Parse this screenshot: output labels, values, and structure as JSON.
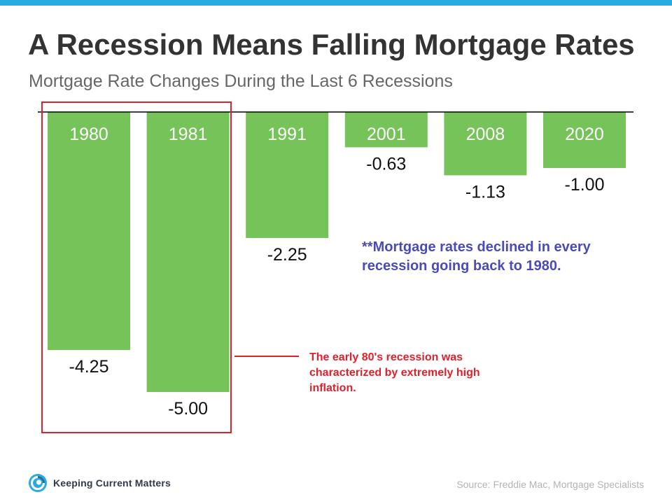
{
  "header": {
    "title": "A Recession Means Falling Mortgage Rates",
    "subtitle": "Mortgage Rate Changes During the Last 6 Recessions"
  },
  "colors": {
    "top_bar": "#29abe2",
    "bar": "#76c35a",
    "highlight": "#e0202b",
    "note_blue": "#4b4bb7",
    "axis": "#000000"
  },
  "chart_data": {
    "type": "bar",
    "categories": [
      "1980",
      "1981",
      "1991",
      "2001",
      "2008",
      "2020"
    ],
    "values": [
      -4.25,
      -5.0,
      -2.25,
      -0.63,
      -1.13,
      -1.0
    ],
    "value_labels": [
      "-4.25",
      "-5.00",
      "-2.25",
      "-0.63",
      "-1.13",
      "-1.00"
    ],
    "ylim": [
      -5.0,
      0
    ],
    "grid": false,
    "legend": "none"
  },
  "annotations": {
    "highlight_note": "The early 80's recession was characterized by extremely high inflation.",
    "callout": "**Mortgage rates declined in every recession going back to 1980."
  },
  "footer": {
    "logo_icon": "kcm-swirl-icon",
    "logo_text": "Keeping Current Matters",
    "source": "Source: Freddie Mac, Mortgage Specialists"
  }
}
